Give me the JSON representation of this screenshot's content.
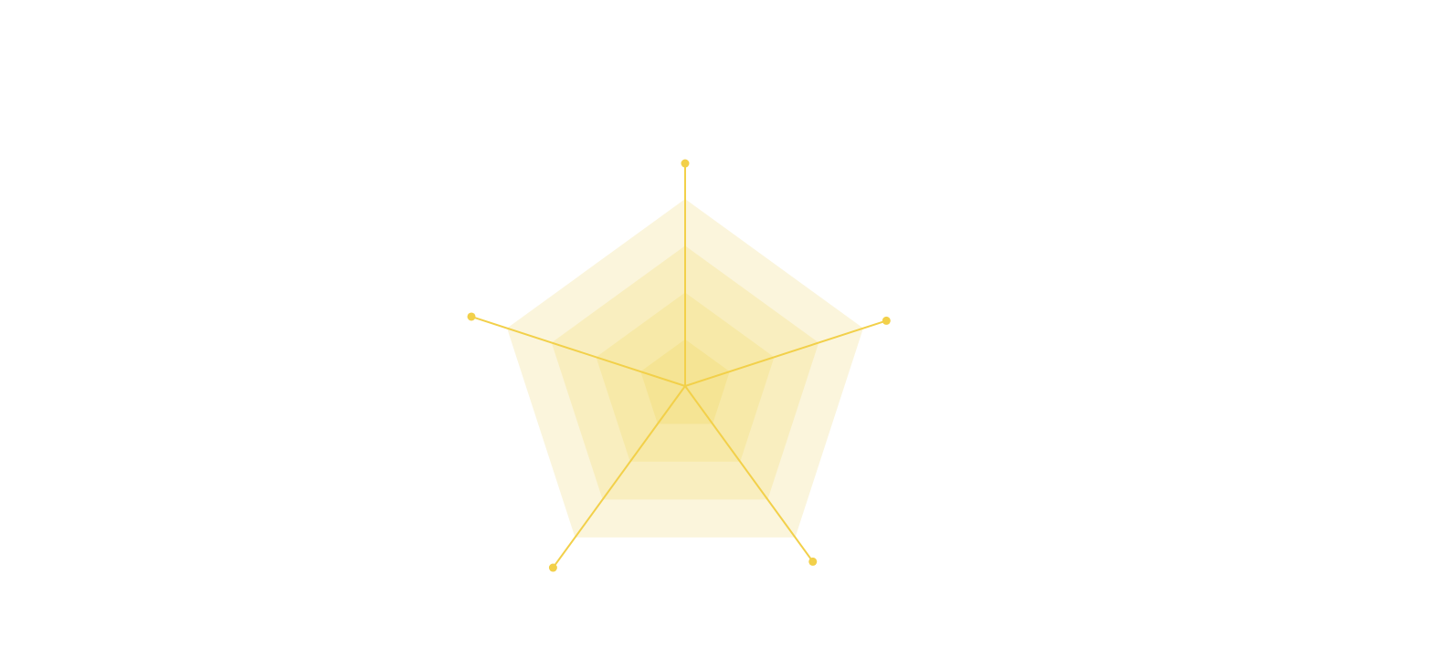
{
  "chart_data": {
    "type": "radar",
    "title": "",
    "axis_count": 5,
    "grid_levels": 4,
    "grid_shape": "pentagon",
    "grid_style": "filled-bands",
    "legend": "none",
    "tick_labels_shown": false,
    "series": [
      {
        "values": [
          1.19,
          1.13,
          1.16,
          1.2,
          1.2
        ]
      }
    ],
    "scale_max": 1.0,
    "colors": {
      "series": "#F2D04A",
      "band_1": "#FBF5DC",
      "band_2": "#F9EEBF",
      "band_3": "#F7E9A8",
      "band_4": "#F5E494"
    }
  }
}
